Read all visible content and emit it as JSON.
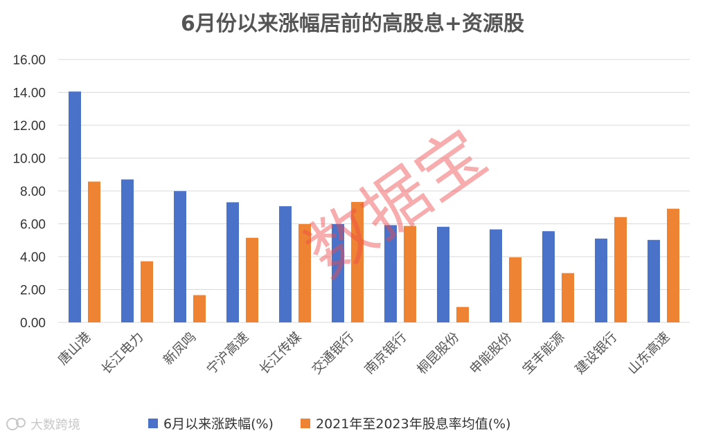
{
  "chart_data": {
    "type": "bar",
    "title": "6月份以来涨幅居前的高股息+资源股",
    "categories": [
      "唐山港",
      "长江电力",
      "新凤鸣",
      "宁沪高速",
      "长江传媒",
      "交通银行",
      "南京银行",
      "桐昆股份",
      "申能股份",
      "宝丰能源",
      "建设银行",
      "山东高速"
    ],
    "series": [
      {
        "name": "6月以来涨跌幅(%)",
        "color": "#4a72c9",
        "values": [
          14.05,
          8.7,
          7.99,
          7.31,
          7.07,
          5.98,
          5.92,
          5.82,
          5.66,
          5.55,
          5.1,
          5.02
        ]
      },
      {
        "name": "2021年至2023年股息率均值(%)",
        "color": "#ee8433",
        "values": [
          8.57,
          3.72,
          1.66,
          5.15,
          5.98,
          7.33,
          5.87,
          0.94,
          3.96,
          3.0,
          6.41,
          6.92
        ]
      }
    ],
    "yticks": [
      "0.00",
      "2.00",
      "4.00",
      "6.00",
      "8.00",
      "10.00",
      "12.00",
      "14.00",
      "16.00"
    ],
    "ylim": [
      0,
      16
    ],
    "grid": true,
    "legend_position": "bottom",
    "xlabel": "",
    "ylabel": ""
  },
  "watermark": "数据宝",
  "logo": {
    "icon": "cloud-icon",
    "text": "大数跨境"
  }
}
